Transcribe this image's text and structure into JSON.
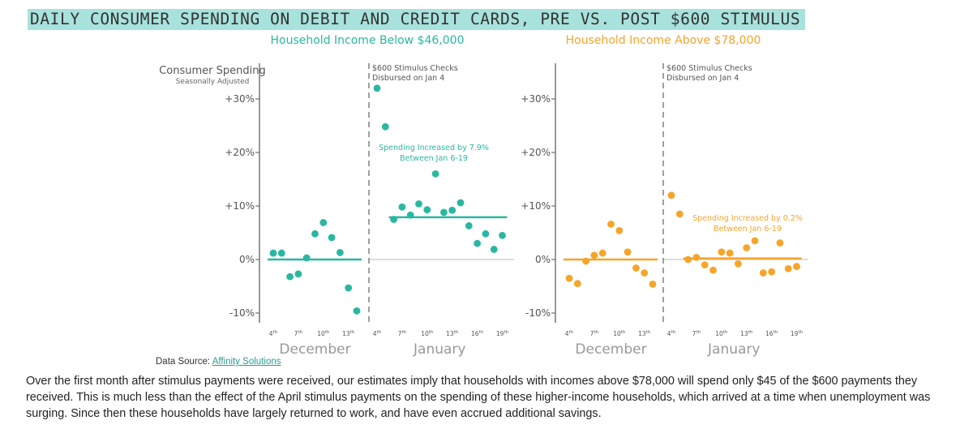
{
  "title": "DAILY CONSUMER SPENDING ON DEBIT AND CREDIT CARDS, PRE VS. POST $600 STIMULUS",
  "colors": {
    "teal": "#2ab7a2",
    "orange": "#f6a52a",
    "title_highlight": "#a8e2dc",
    "axis": "#555555"
  },
  "axis": {
    "ylabel": "Consumer Spending",
    "ylabel_sub": "Seasonally Adjusted",
    "yticks": [
      "+30%",
      "+20%",
      "+10%",
      "0%",
      "-10%"
    ]
  },
  "source": {
    "label": "Data Source:",
    "link": "Affinity Solutions"
  },
  "body_text": "Over the first month after stimulus payments were received, our estimates imply that households with incomes above $78,000 will spend only $45 of the $600 payments they received. This is much less than the effect of the April stimulus payments on the spending of these higher-income households, which arrived at a time when unemployment was surging.  Since then these households have largely returned to work, and have even accrued additional savings.",
  "chart_data": [
    {
      "type": "scatter",
      "title": "Household Income Below $46,000",
      "ylabel": "Consumer Spending",
      "ylim": [
        -11,
        33
      ],
      "months": [
        "December",
        "January"
      ],
      "dec_ticks": [
        {
          "n": "4",
          "s": "th"
        },
        {
          "n": "7",
          "s": "th"
        },
        {
          "n": "10",
          "s": "th"
        },
        {
          "n": "13",
          "s": "th"
        }
      ],
      "jan_ticks": [
        {
          "n": "4",
          "s": "th"
        },
        {
          "n": "7",
          "s": "th"
        },
        {
          "n": "10",
          "s": "th"
        },
        {
          "n": "13",
          "s": "th"
        },
        {
          "n": "16",
          "s": "th"
        },
        {
          "n": "19",
          "s": "th"
        }
      ],
      "vline_note": [
        "$600 Stimulus Checks",
        "Disbursed on Jan 4"
      ],
      "dec_points": [
        [
          4,
          1.2
        ],
        [
          5,
          1.2
        ],
        [
          6,
          -3.2
        ],
        [
          7,
          -2.7
        ],
        [
          8,
          0.3
        ],
        [
          9,
          4.8
        ],
        [
          10,
          6.9
        ],
        [
          11,
          4.1
        ],
        [
          12,
          1.3
        ],
        [
          13,
          -5.3
        ],
        [
          14,
          -9.6
        ]
      ],
      "jan_points": [
        [
          4,
          32
        ],
        [
          5,
          24.8
        ],
        [
          6,
          7.5
        ],
        [
          7,
          9.8
        ],
        [
          8,
          8.3
        ],
        [
          9,
          10.4
        ],
        [
          10,
          9.3
        ],
        [
          11,
          16
        ],
        [
          12,
          8.8
        ],
        [
          13,
          9.2
        ],
        [
          14,
          10.6
        ],
        [
          15,
          6.3
        ],
        [
          16,
          3
        ],
        [
          17,
          4.8
        ],
        [
          18,
          1.9
        ],
        [
          19,
          4.5
        ]
      ],
      "dec_avg": 0,
      "jan_avg": 7.9,
      "annotation": [
        "Spending Increased by 7.9%",
        "Between Jan 6-19"
      ]
    },
    {
      "type": "scatter",
      "title": "Household Income Above $78,000",
      "ylim": [
        -11,
        33
      ],
      "months": [
        "December",
        "January"
      ],
      "dec_ticks": [
        {
          "n": "4",
          "s": "th"
        },
        {
          "n": "7",
          "s": "th"
        },
        {
          "n": "10",
          "s": "th"
        },
        {
          "n": "13",
          "s": "th"
        }
      ],
      "jan_ticks": [
        {
          "n": "4",
          "s": "th"
        },
        {
          "n": "7",
          "s": "th"
        },
        {
          "n": "10",
          "s": "th"
        },
        {
          "n": "13",
          "s": "th"
        },
        {
          "n": "16",
          "s": "th"
        },
        {
          "n": "19",
          "s": "th"
        }
      ],
      "vline_note": [
        "$600 Stimulus Checks",
        "Disbursed on Jan 4"
      ],
      "dec_points": [
        [
          4,
          -3.5
        ],
        [
          5,
          -4.5
        ],
        [
          6,
          -0.3
        ],
        [
          7,
          0.8
        ],
        [
          8,
          1.2
        ],
        [
          9,
          6.6
        ],
        [
          10,
          5.4
        ],
        [
          11,
          1.4
        ],
        [
          12,
          -1.6
        ],
        [
          13,
          -2.5
        ],
        [
          14,
          -4.6
        ]
      ],
      "jan_points": [
        [
          4,
          12
        ],
        [
          5,
          8.5
        ],
        [
          6,
          0
        ],
        [
          7,
          0.4
        ],
        [
          8,
          -1
        ],
        [
          9,
          -2
        ],
        [
          10,
          1.4
        ],
        [
          11,
          1.2
        ],
        [
          12,
          -0.8
        ],
        [
          13,
          2.2
        ],
        [
          14,
          3.5
        ],
        [
          15,
          -2.5
        ],
        [
          16,
          -2.3
        ],
        [
          17,
          3.1
        ],
        [
          18,
          -1.7
        ],
        [
          19,
          -1.3
        ]
      ],
      "dec_avg": 0,
      "jan_avg": 0.2,
      "annotation": [
        "Spending Increased by 0.2%",
        "Between Jan 6-19"
      ]
    }
  ]
}
